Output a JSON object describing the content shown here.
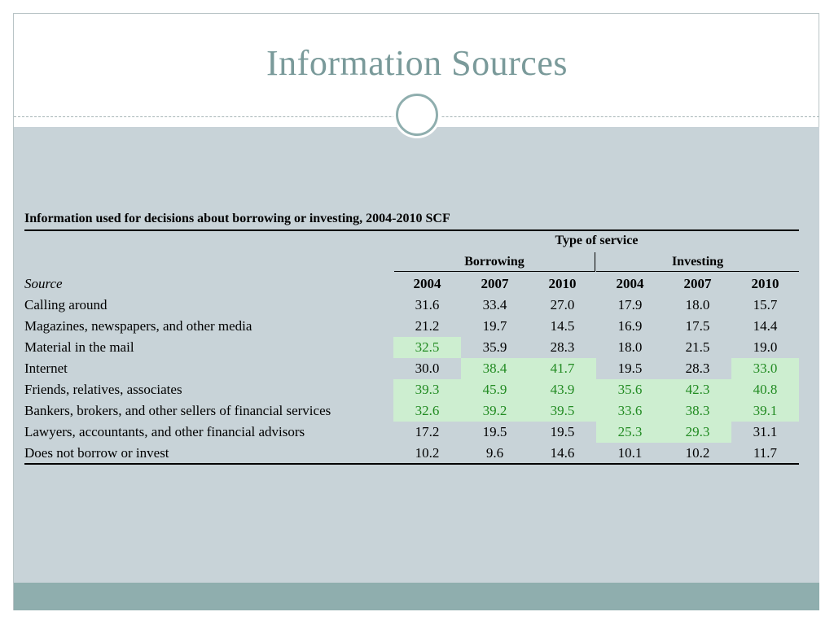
{
  "slide": {
    "title": "Information Sources"
  },
  "table": {
    "title": "Information used for decisions about borrowing or investing, 2004-2010 SCF",
    "super_header": "Type of service",
    "groups": [
      "Borrowing",
      "Investing"
    ],
    "source_header": "Source",
    "years": [
      "2004",
      "2007",
      "2010",
      "2004",
      "2007",
      "2010"
    ],
    "rows": [
      {
        "source": "Calling around",
        "values": [
          "31.6",
          "33.4",
          "27.0",
          "17.9",
          "18.0",
          "15.7"
        ],
        "highlight": [
          false,
          false,
          false,
          false,
          false,
          false
        ]
      },
      {
        "source": "Magazines, newspapers, and other media",
        "values": [
          "21.2",
          "19.7",
          "14.5",
          "16.9",
          "17.5",
          "14.4"
        ],
        "highlight": [
          false,
          false,
          false,
          false,
          false,
          false
        ]
      },
      {
        "source": "Material in the mail",
        "values": [
          "32.5",
          "35.9",
          "28.3",
          "18.0",
          "21.5",
          "19.0"
        ],
        "highlight": [
          true,
          false,
          false,
          false,
          false,
          false
        ]
      },
      {
        "source": "Internet",
        "values": [
          "30.0",
          "38.4",
          "41.7",
          "19.5",
          "28.3",
          "33.0"
        ],
        "highlight": [
          false,
          true,
          true,
          false,
          false,
          true
        ]
      },
      {
        "source": "Friends, relatives, associates",
        "values": [
          "39.3",
          "45.9",
          "43.9",
          "35.6",
          "42.3",
          "40.8"
        ],
        "highlight": [
          true,
          true,
          true,
          true,
          true,
          true
        ]
      },
      {
        "source": "Bankers, brokers, and other sellers of financial services",
        "values": [
          "32.6",
          "39.2",
          "39.5",
          "33.6",
          "38.3",
          "39.1"
        ],
        "highlight": [
          true,
          true,
          true,
          true,
          true,
          true
        ]
      },
      {
        "source": "Lawyers, accountants, and other financial advisors",
        "values": [
          "17.2",
          "19.5",
          "19.5",
          "25.3",
          "29.3",
          "31.1"
        ],
        "highlight": [
          false,
          false,
          false,
          true,
          true,
          false
        ]
      },
      {
        "source": "Does not borrow or invest",
        "values": [
          "10.2",
          "9.6",
          "14.6",
          "10.1",
          "10.2",
          "11.7"
        ],
        "highlight": [
          false,
          false,
          false,
          false,
          false,
          false
        ]
      }
    ]
  },
  "colors": {
    "title": "#7a9a9a",
    "panel": "#c8d3d8",
    "band": "#8faeae",
    "highlight_bg": "#cdeed0",
    "highlight_text": "#228b22"
  }
}
